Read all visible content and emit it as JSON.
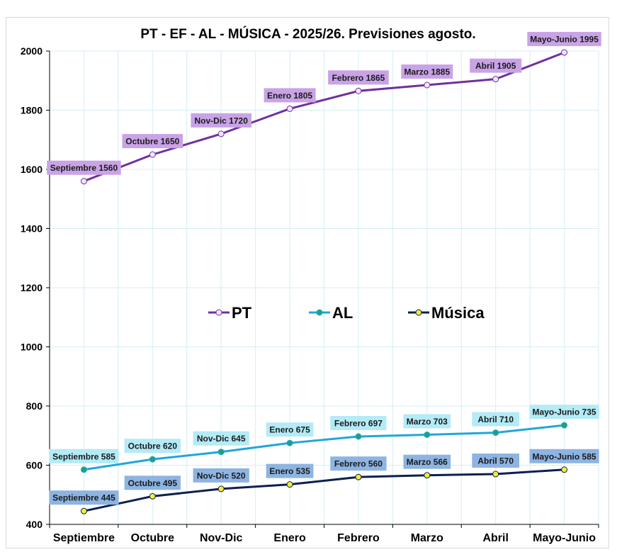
{
  "chart_data": {
    "type": "line",
    "title": "PT - EF -  AL - MÚSICA - 2025/26.  Previsiones agosto.",
    "xlabel": "",
    "ylabel": "",
    "categories": [
      "Septiembre",
      "Octubre",
      "Nov-Dic",
      "Enero",
      "Febrero",
      "Marzo",
      "Abril",
      "Mayo-Junio"
    ],
    "ylim": [
      400,
      2000
    ],
    "yticks": [
      400,
      600,
      800,
      1000,
      1200,
      1400,
      1600,
      1800,
      2000
    ],
    "grid": true,
    "legend_position": "center",
    "series": [
      {
        "name": "PT",
        "values": [
          1560,
          1650,
          1720,
          1805,
          1865,
          1885,
          1905,
          1995
        ],
        "color": "#7030a0",
        "marker_fill": "#f2e6ff",
        "label_bg": "#c9a3e6",
        "labels": [
          "Septiembre 1560",
          "Octubre 1650",
          "Nov-Dic 1720",
          "Enero 1805",
          "Febrero 1865",
          "Marzo 1885",
          "Abril 1905",
          "Mayo-Junio 1995"
        ]
      },
      {
        "name": "AL",
        "values": [
          585,
          620,
          645,
          675,
          697,
          703,
          710,
          735
        ],
        "color": "#1fa7d9",
        "marker_fill": "#1aa37a",
        "label_bg": "#b3ebf7",
        "labels": [
          "Septiembre 585",
          "Octubre 620",
          "Nov-Dic 645",
          "Enero 675",
          "Febrero 697",
          "Marzo 703",
          "Abril 710",
          "Mayo-Junio 735"
        ]
      },
      {
        "name": "Música",
        "values": [
          445,
          495,
          520,
          535,
          560,
          566,
          570,
          585
        ],
        "color": "#0d1f4f",
        "marker_fill": "#f2ee3a",
        "label_bg": "#8db4e2",
        "labels": [
          "Septiembre 445",
          "Octubre 495",
          "Nov-Dic 520",
          "Enero 535",
          "Febrero 560",
          "Marzo 566",
          "Abril 570",
          "Mayo-Junio 585"
        ]
      }
    ]
  }
}
